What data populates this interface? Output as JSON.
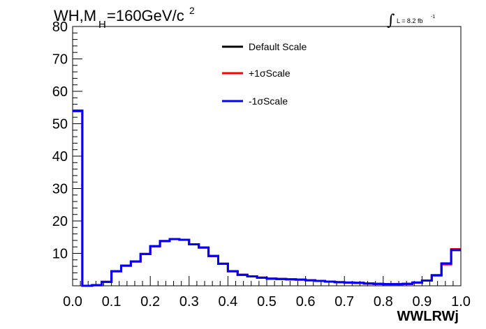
{
  "title": {
    "main": "WH,M",
    "sub": "H",
    "rest": "=160GeV/c",
    "sup": "2"
  },
  "lumi": {
    "integral": "∫",
    "text": "L = 8.2 fb",
    "sup": "-1"
  },
  "chart_data": {
    "type": "line",
    "xlabel": "WWLRWj",
    "ylabel": "",
    "xlim": [
      0,
      1
    ],
    "ylim": [
      0,
      80
    ],
    "x_ticks": [
      "0.0",
      "0.1",
      "0.2",
      "0.3",
      "0.4",
      "0.5",
      "0.6",
      "0.7",
      "0.8",
      "0.9",
      "1.0"
    ],
    "y_ticks": [
      "10",
      "20",
      "30",
      "40",
      "50",
      "60",
      "70",
      "80"
    ],
    "bin_edges": [
      0.0,
      0.025,
      0.05,
      0.075,
      0.1,
      0.125,
      0.15,
      0.175,
      0.2,
      0.225,
      0.25,
      0.275,
      0.3,
      0.325,
      0.35,
      0.375,
      0.4,
      0.425,
      0.45,
      0.475,
      0.5,
      0.525,
      0.55,
      0.575,
      0.6,
      0.625,
      0.65,
      0.675,
      0.7,
      0.725,
      0.75,
      0.775,
      0.8,
      0.825,
      0.85,
      0.875,
      0.9,
      0.925,
      0.95,
      0.975,
      1.0
    ],
    "series": [
      {
        "name": "Default Scale",
        "color": "#000000",
        "values": [
          54.0,
          0.0,
          0.2,
          1.2,
          4.5,
          6.2,
          7.5,
          9.8,
          12.2,
          13.8,
          14.4,
          14.2,
          12.8,
          11.8,
          9.2,
          6.8,
          4.5,
          3.4,
          2.9,
          2.5,
          2.2,
          2.1,
          2.0,
          1.9,
          1.7,
          1.5,
          1.3,
          1.1,
          1.0,
          0.9,
          0.7,
          0.6,
          0.5,
          0.5,
          0.6,
          1.0,
          1.6,
          3.2,
          6.8,
          11.0
        ]
      },
      {
        "name": "+1σScale",
        "color": "#ff0000",
        "values": [
          54.1,
          0.0,
          0.2,
          1.2,
          4.5,
          6.2,
          7.5,
          9.8,
          12.2,
          13.8,
          14.4,
          14.2,
          12.8,
          11.8,
          9.2,
          6.8,
          4.5,
          3.4,
          2.9,
          2.5,
          2.2,
          2.1,
          2.0,
          1.9,
          1.7,
          1.5,
          1.3,
          1.1,
          1.0,
          0.9,
          0.7,
          0.6,
          0.5,
          0.5,
          0.6,
          1.0,
          1.6,
          3.3,
          6.6,
          11.3
        ]
      },
      {
        "name": "-1σScale",
        "color": "#0000ff",
        "values": [
          53.9,
          0.0,
          0.2,
          1.2,
          4.5,
          6.2,
          7.5,
          9.8,
          12.2,
          13.8,
          14.4,
          14.2,
          12.8,
          11.8,
          9.2,
          6.8,
          4.5,
          3.4,
          2.9,
          2.5,
          2.2,
          2.1,
          2.0,
          1.9,
          1.7,
          1.5,
          1.3,
          1.1,
          1.0,
          0.9,
          0.7,
          0.6,
          0.5,
          0.5,
          0.6,
          1.0,
          1.6,
          3.2,
          6.9,
          11.1
        ]
      }
    ],
    "legend_position": "top-center"
  }
}
